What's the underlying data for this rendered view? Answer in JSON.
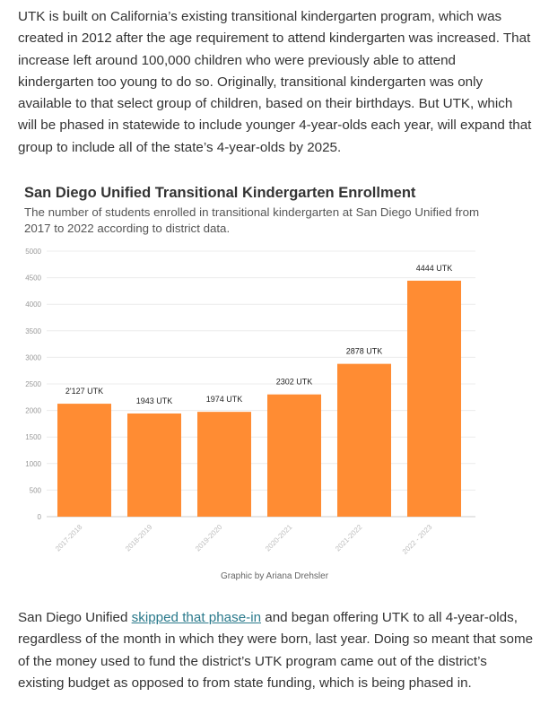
{
  "article": {
    "para1": "UTK is built on California’s existing transitional kindergarten program, which was created in 2012 after the age requirement to attend kindergarten was increased. That increase left around 100,000 children who were previously able to attend kindergarten too young to do so. Originally, transitional kindergarten was only available to that select group of children, based on their birthdays. But UTK, which will be phased in statewide to include younger 4-year-olds each year, will expand that group to include all of the state’s 4-year-olds by 2025.",
    "para2_before": "San Diego Unified ",
    "para2_link": "skipped that phase-in",
    "para2_after": " and began offering UTK to all 4-year-olds, regardless of the month in which they were born, last year. Doing so meant that some of the money used to fund the district’s UTK program came out of the district’s existing budget as opposed to from state funding, which is being phased in."
  },
  "chart_data": {
    "type": "bar",
    "title": "San Diego Unified Transitional Kindergarten Enrollment",
    "subtitle": "The number of students enrolled in transitional kindergarten at San Diego Unified from 2017 to 2022 according to district data.",
    "credit": "Graphic by Ariana Drehsler",
    "categories": [
      "2017-2018",
      "2018-2019",
      "2019-2020",
      "2020-2021",
      "2021-2022",
      "2022 - 2023"
    ],
    "values": [
      2127,
      1943,
      1974,
      2302,
      2878,
      4444
    ],
    "data_labels": [
      "2'127 UTK",
      "1943 UTK",
      "1974 UTK",
      "2302  UTK",
      "2878 UTK",
      "4444 UTK"
    ],
    "yticks": [
      0,
      500,
      1000,
      1500,
      2000,
      2500,
      3000,
      3500,
      4000,
      4500,
      5000
    ],
    "ylim": [
      0,
      5000
    ],
    "xlabel": "",
    "ylabel": "",
    "grid": true,
    "bar_color": "#ff8c33"
  }
}
